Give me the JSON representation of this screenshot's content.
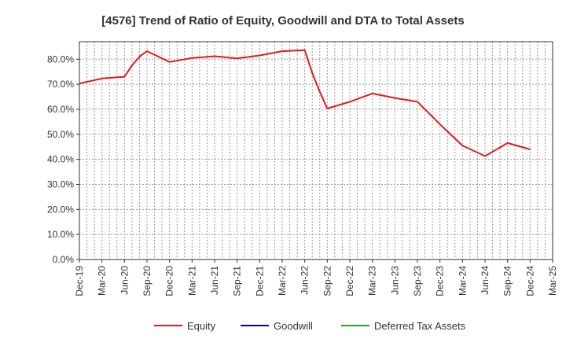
{
  "chart_data": {
    "type": "line",
    "title": "[4576]  Trend of Ratio of Equity, Goodwill and DTA to Total Assets",
    "xlabel": "",
    "ylabel": "",
    "x_ticks": [
      "Dec-19",
      "Mar-20",
      "Jun-20",
      "Sep-20",
      "Dec-20",
      "Mar-21",
      "Jun-21",
      "Sep-21",
      "Dec-21",
      "Mar-22",
      "Jun-22",
      "Sep-22",
      "Dec-22",
      "Mar-23",
      "Jun-23",
      "Sep-23",
      "Dec-23",
      "Mar-24",
      "Jun-24",
      "Sep-24",
      "Dec-24",
      "Mar-25"
    ],
    "y_ticks": [
      "0.0%",
      "10.0%",
      "20.0%",
      "30.0%",
      "40.0%",
      "50.0%",
      "60.0%",
      "70.0%",
      "80.0%"
    ],
    "ylim": [
      0,
      87
    ],
    "grid": true,
    "legend_position": "bottom",
    "series": [
      {
        "name": "Equity",
        "color": "#e31a1c",
        "points": [
          {
            "x": "Dec-19",
            "y": 70.3
          },
          {
            "x": "Mar-20",
            "y": 72.3
          },
          {
            "x": "Jun-20",
            "y": 73.0
          },
          {
            "x": "Jul-20",
            "y": 77.5
          },
          {
            "x": "Aug-20",
            "y": 81.0
          },
          {
            "x": "Sep-20",
            "y": 83.2
          },
          {
            "x": "Dec-20",
            "y": 78.9
          },
          {
            "x": "Mar-21",
            "y": 80.5
          },
          {
            "x": "Jun-21",
            "y": 81.2
          },
          {
            "x": "Sep-21",
            "y": 80.3
          },
          {
            "x": "Dec-21",
            "y": 81.5
          },
          {
            "x": "Mar-22",
            "y": 83.2
          },
          {
            "x": "Jun-22",
            "y": 83.6
          },
          {
            "x": "Jul-22",
            "y": 74.5
          },
          {
            "x": "Aug-22",
            "y": 67.0
          },
          {
            "x": "Sep-22",
            "y": 60.3
          },
          {
            "x": "Dec-22",
            "y": 63.0
          },
          {
            "x": "Mar-23",
            "y": 66.3
          },
          {
            "x": "Jun-23",
            "y": 64.5
          },
          {
            "x": "Sep-23",
            "y": 63.0
          },
          {
            "x": "Dec-23",
            "y": 54.0
          },
          {
            "x": "Mar-24",
            "y": 45.5
          },
          {
            "x": "Jun-24",
            "y": 41.3
          },
          {
            "x": "Sep-24",
            "y": 46.5
          },
          {
            "x": "Dec-24",
            "y": 44.0
          }
        ]
      },
      {
        "name": "Goodwill",
        "color": "#0000cc",
        "points": []
      },
      {
        "name": "Deferred Tax Assets",
        "color": "#2ca02c",
        "points": []
      }
    ]
  }
}
